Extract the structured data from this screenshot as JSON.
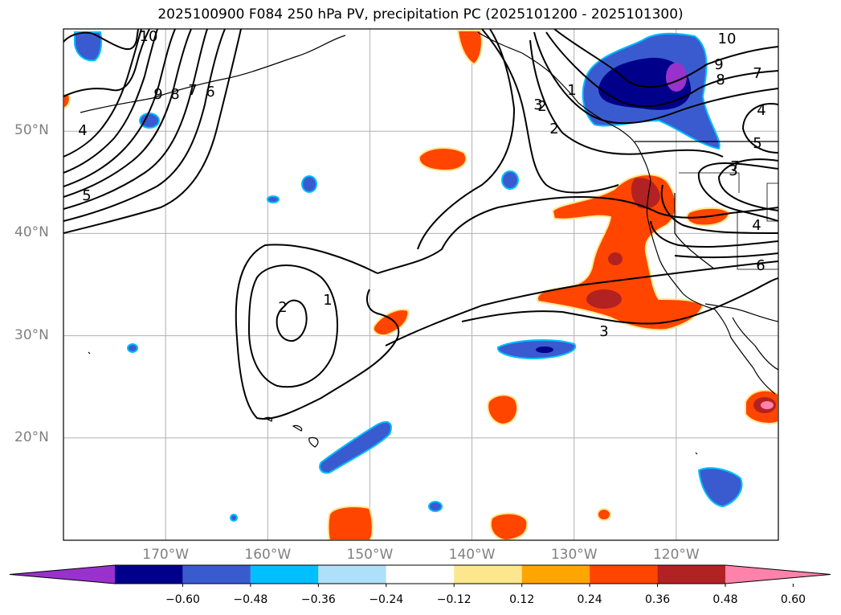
{
  "title": "2025100900 F084 250 hPa PV, precipitation PC (2025101200 - 2025101300)",
  "map": {
    "lon_range": [
      -180,
      -110
    ],
    "lat_range": [
      10,
      60
    ],
    "lat_ticks": [
      {
        "value": 50,
        "label": "50°N"
      },
      {
        "value": 40,
        "label": "40°N"
      },
      {
        "value": 30,
        "label": "30°N"
      },
      {
        "value": 20,
        "label": "20°N"
      }
    ],
    "lon_ticks": [
      {
        "value": -170,
        "label": "170°W"
      },
      {
        "value": -160,
        "label": "160°W"
      },
      {
        "value": -150,
        "label": "150°W"
      },
      {
        "value": -140,
        "label": "140°W"
      },
      {
        "value": -130,
        "label": "130°W"
      },
      {
        "value": -120,
        "label": "120°W"
      }
    ],
    "gridlines": true,
    "contour_labels": [
      "10",
      "9",
      "8",
      "7",
      "6",
      "5",
      "4",
      "3",
      "2",
      "1",
      "3",
      "2",
      "1",
      "10",
      "9",
      "8",
      "7",
      "4",
      "3",
      "4",
      "5",
      "7",
      "6",
      "2"
    ]
  },
  "colorbar": {
    "ticks": [
      "−0.60",
      "−0.48",
      "−0.36",
      "−0.24",
      "−0.12",
      "0.12",
      "0.24",
      "0.36",
      "0.48",
      "0.60"
    ],
    "colors": [
      "#9932cc",
      "#00008b",
      "#3a5bd0",
      "#00bfff",
      "#afe0fa",
      "#ffffff",
      "#fce78e",
      "#ffa500",
      "#ff4500",
      "#b22222",
      "#ff82ab"
    ]
  },
  "fills": {
    "blue1": "#3a5bd0",
    "blue2": "#00008b",
    "blue3": "#9932cc",
    "cyan": "#00bfff",
    "light": "#afe0fa",
    "yel": "#fce78e",
    "orange": "#ff4500",
    "red": "#b22222",
    "pink": "#ff82ab"
  }
}
